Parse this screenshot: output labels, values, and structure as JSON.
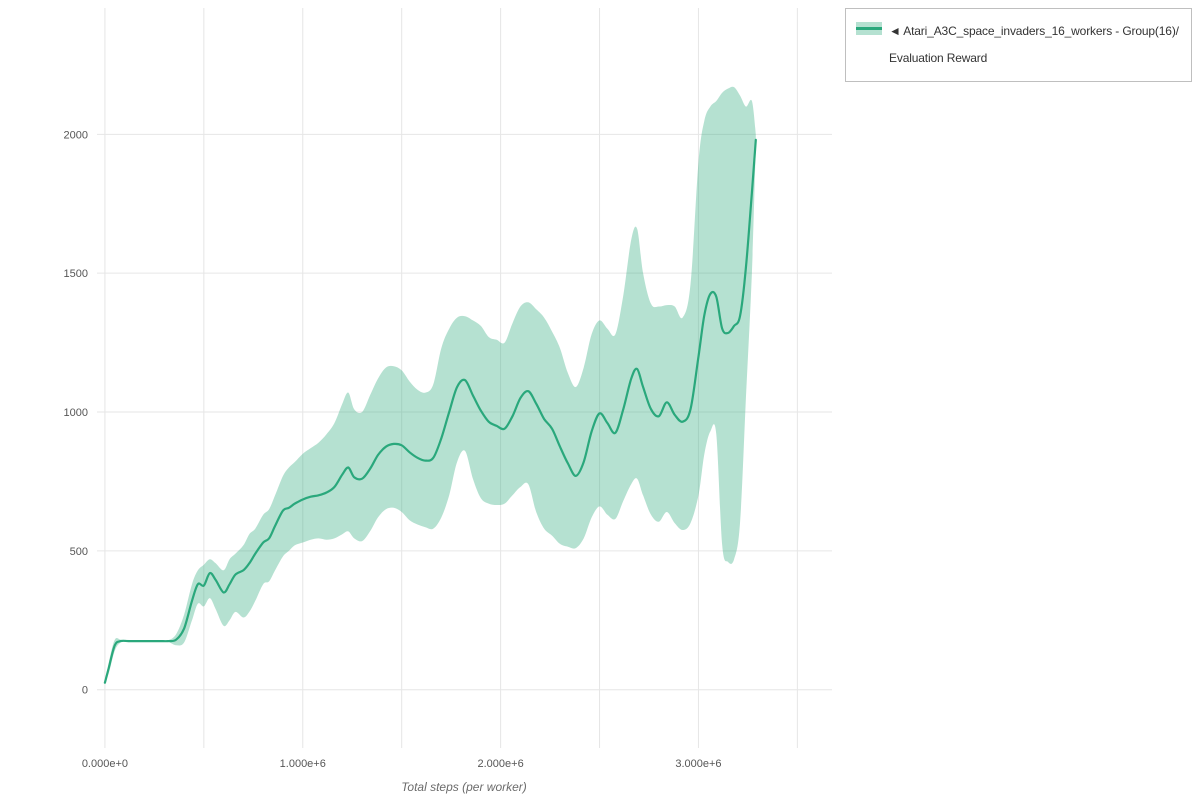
{
  "colors": {
    "line": "#2aa87c",
    "band": "rgba(42,168,124,0.35)",
    "grid": "#e6e6e6",
    "tick_text": "#565656",
    "legend_border": "#bfbfbf",
    "background": "#ffffff"
  },
  "legend": {
    "marker": "◄",
    "line1": "◄ Atari_A3C_space_invaders_16_workers - Group(16)/",
    "line2": "Evaluation Reward"
  },
  "chart_data": {
    "type": "line",
    "title": "",
    "xlabel": "Total steps (per worker)",
    "ylabel": "",
    "grid": true,
    "legend_position": "top-right-outside",
    "xlim": [
      -40000,
      3675000
    ],
    "ylim": [
      -210,
      2455
    ],
    "x_grid_step": 500000,
    "x_ticks": [
      {
        "value": 0,
        "label": "0.000e+0"
      },
      {
        "value": 1000000,
        "label": "1.000e+6"
      },
      {
        "value": 2000000,
        "label": "2.000e+6"
      },
      {
        "value": 3000000,
        "label": "3.000e+6"
      }
    ],
    "y_ticks": [
      0,
      500,
      1000,
      1500,
      2000
    ],
    "series": [
      {
        "name": "Atari_A3C_space_invaders_16_workers - Group(16)/Evaluation Reward",
        "has_band": true,
        "x": [
          0,
          20000,
          50000,
          80000,
          120000,
          160000,
          200000,
          240000,
          280000,
          320000,
          360000,
          400000,
          440000,
          470000,
          500000,
          530000,
          560000,
          600000,
          630000,
          660000,
          700000,
          730000,
          760000,
          800000,
          830000,
          860000,
          900000,
          930000,
          960000,
          1000000,
          1040000,
          1080000,
          1120000,
          1160000,
          1200000,
          1230000,
          1260000,
          1300000,
          1340000,
          1380000,
          1420000,
          1460000,
          1500000,
          1540000,
          1580000,
          1620000,
          1660000,
          1700000,
          1740000,
          1780000,
          1820000,
          1860000,
          1900000,
          1940000,
          1980000,
          2020000,
          2060000,
          2100000,
          2140000,
          2180000,
          2220000,
          2260000,
          2300000,
          2340000,
          2380000,
          2420000,
          2460000,
          2500000,
          2540000,
          2580000,
          2620000,
          2660000,
          2690000,
          2720000,
          2760000,
          2800000,
          2840000,
          2880000,
          2920000,
          2960000,
          3000000,
          3030000,
          3060000,
          3090000,
          3120000,
          3150000,
          3180000,
          3210000,
          3240000,
          3270000,
          3290000
        ],
        "mean": [
          25,
          80,
          160,
          175,
          175,
          175,
          175,
          175,
          175,
          175,
          180,
          220,
          320,
          380,
          375,
          420,
          395,
          350,
          380,
          415,
          430,
          455,
          490,
          530,
          545,
          590,
          645,
          655,
          670,
          685,
          695,
          700,
          710,
          730,
          775,
          800,
          765,
          760,
          795,
          845,
          875,
          885,
          880,
          855,
          835,
          825,
          835,
          905,
          1000,
          1090,
          1115,
          1060,
          1005,
          965,
          950,
          940,
          985,
          1050,
          1075,
          1030,
          975,
          940,
          875,
          815,
          770,
          820,
          930,
          995,
          960,
          925,
          1010,
          1120,
          1155,
          1090,
          1010,
          985,
          1035,
          990,
          965,
          1010,
          1200,
          1350,
          1425,
          1415,
          1300,
          1285,
          1310,
          1345,
          1520,
          1790,
          1980
        ],
        "lower": [
          25,
          60,
          140,
          170,
          172,
          172,
          172,
          172,
          172,
          172,
          160,
          170,
          250,
          310,
          300,
          330,
          290,
          230,
          250,
          280,
          260,
          280,
          320,
          380,
          390,
          430,
          480,
          500,
          520,
          530,
          540,
          545,
          540,
          545,
          560,
          570,
          545,
          535,
          570,
          620,
          650,
          655,
          640,
          610,
          595,
          585,
          580,
          620,
          700,
          820,
          860,
          760,
          690,
          670,
          665,
          670,
          700,
          730,
          740,
          640,
          580,
          555,
          525,
          515,
          510,
          545,
          620,
          660,
          630,
          615,
          680,
          740,
          760,
          700,
          630,
          605,
          640,
          600,
          575,
          600,
          700,
          850,
          930,
          920,
          520,
          460,
          470,
          600,
          1050,
          1500,
          1960
        ],
        "upper": [
          25,
          100,
          180,
          180,
          178,
          178,
          178,
          178,
          178,
          178,
          200,
          270,
          380,
          430,
          450,
          470,
          455,
          430,
          470,
          490,
          520,
          560,
          580,
          630,
          650,
          700,
          770,
          800,
          820,
          850,
          870,
          890,
          920,
          960,
          1030,
          1070,
          1010,
          1000,
          1060,
          1120,
          1160,
          1165,
          1150,
          1110,
          1080,
          1070,
          1100,
          1230,
          1300,
          1340,
          1345,
          1330,
          1310,
          1270,
          1260,
          1250,
          1320,
          1380,
          1395,
          1370,
          1340,
          1290,
          1230,
          1140,
          1090,
          1160,
          1280,
          1330,
          1300,
          1280,
          1420,
          1620,
          1660,
          1500,
          1390,
          1380,
          1385,
          1380,
          1340,
          1460,
          1900,
          2050,
          2100,
          2120,
          2150,
          2165,
          2170,
          2140,
          2100,
          2120,
          2000
        ]
      }
    ]
  }
}
